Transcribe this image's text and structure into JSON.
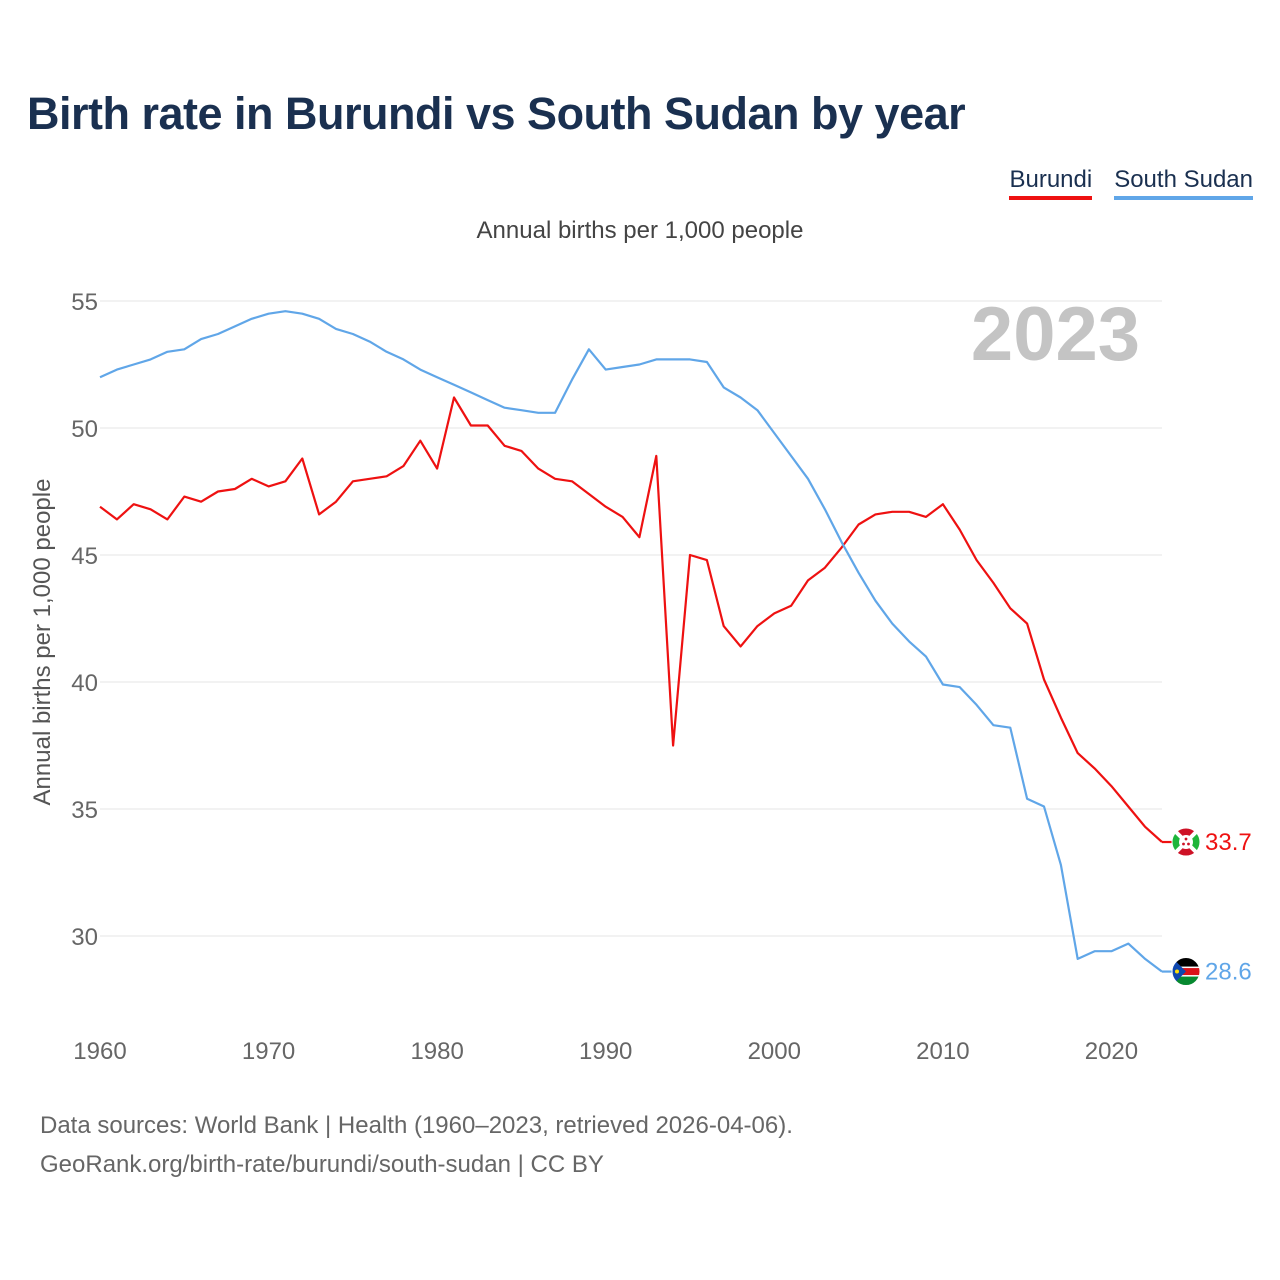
{
  "title": "Birth rate in Burundi vs South Sudan by year",
  "legend": [
    {
      "label": "Burundi",
      "color": "#ee1111"
    },
    {
      "label": "South Sudan",
      "color": "#60a6e8"
    }
  ],
  "subtitle": "Annual births per 1,000 people",
  "year_label": "2023",
  "source_lines": [
    "Data sources: World Bank | Health (1960–2023, retrieved 2026-04-06).",
    "GeoRank.org/birth-rate/burundi/south-sudan | CC BY"
  ],
  "chart_data": {
    "type": "line",
    "ylabel": "Annual births per 1,000 people",
    "xlabel": "",
    "xlim": [
      1960,
      2023
    ],
    "ylim": [
      27,
      56
    ],
    "x_ticks": [
      1960,
      1970,
      1980,
      1990,
      2000,
      2010,
      2020
    ],
    "y_ticks": [
      30,
      35,
      40,
      45,
      50,
      55
    ],
    "grid": true,
    "x": [
      1960,
      1961,
      1962,
      1963,
      1964,
      1965,
      1966,
      1967,
      1968,
      1969,
      1970,
      1971,
      1972,
      1973,
      1974,
      1975,
      1976,
      1977,
      1978,
      1979,
      1980,
      1981,
      1982,
      1983,
      1984,
      1985,
      1986,
      1987,
      1988,
      1989,
      1990,
      1991,
      1992,
      1993,
      1994,
      1995,
      1996,
      1997,
      1998,
      1999,
      2000,
      2001,
      2002,
      2003,
      2004,
      2005,
      2006,
      2007,
      2008,
      2009,
      2010,
      2011,
      2012,
      2013,
      2014,
      2015,
      2016,
      2017,
      2018,
      2019,
      2020,
      2021,
      2022,
      2023
    ],
    "series": [
      {
        "name": "Burundi",
        "color": "#ee1111",
        "end_label": "33.7",
        "values": [
          46.9,
          46.4,
          47.0,
          46.8,
          46.4,
          47.3,
          47.1,
          47.5,
          47.6,
          48.0,
          47.7,
          47.9,
          48.8,
          46.6,
          47.1,
          47.9,
          48.0,
          48.1,
          48.5,
          49.5,
          48.4,
          51.2,
          50.1,
          50.1,
          49.3,
          49.1,
          48.4,
          48.0,
          47.9,
          47.4,
          46.9,
          46.5,
          45.7,
          48.9,
          37.5,
          45.0,
          44.8,
          42.2,
          41.4,
          42.2,
          42.7,
          43.0,
          44.0,
          44.5,
          45.3,
          46.2,
          46.6,
          46.7,
          46.7,
          46.5,
          47.0,
          46.0,
          44.8,
          43.9,
          42.9,
          42.3,
          40.1,
          38.6,
          37.2,
          36.6,
          35.9,
          35.1,
          34.3,
          33.7
        ]
      },
      {
        "name": "South Sudan",
        "color": "#60a6e8",
        "end_label": "28.6",
        "values": [
          52.0,
          52.3,
          52.5,
          52.7,
          53.0,
          53.1,
          53.5,
          53.7,
          54.0,
          54.3,
          54.5,
          54.6,
          54.5,
          54.3,
          53.9,
          53.7,
          53.4,
          53.0,
          52.7,
          52.3,
          52.0,
          51.7,
          51.4,
          51.1,
          50.8,
          50.7,
          50.6,
          50.6,
          51.9,
          53.1,
          52.3,
          52.4,
          52.5,
          52.7,
          52.7,
          52.7,
          52.6,
          51.6,
          51.2,
          50.7,
          49.8,
          48.9,
          48.0,
          46.8,
          45.5,
          44.3,
          43.2,
          42.3,
          41.6,
          41.0,
          39.9,
          39.8,
          39.1,
          38.3,
          38.2,
          35.4,
          35.1,
          32.8,
          29.1,
          29.4,
          29.4,
          29.7,
          29.1,
          28.6
        ]
      }
    ]
  }
}
